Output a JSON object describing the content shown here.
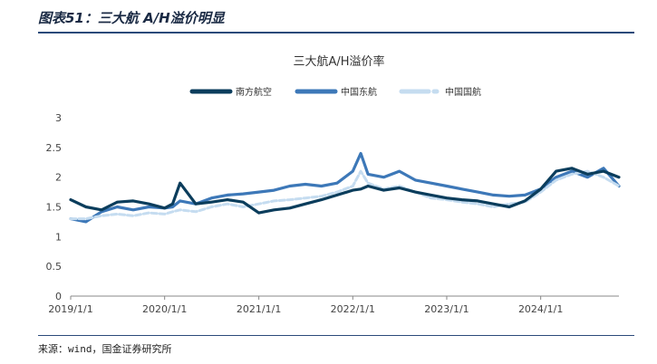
{
  "header": {
    "title": "图表51：三大航 A/H溢价明显"
  },
  "footer": {
    "source": "来源：wind，国金证券研究所"
  },
  "chart_data": {
    "type": "line",
    "title": "三大航A/H溢价率",
    "xlabel": "",
    "ylabel": "",
    "ylim": [
      0,
      3
    ],
    "yticks": [
      "0",
      "0.5",
      "1",
      "1.5",
      "2",
      "2.5",
      "3"
    ],
    "xticks": [
      "2019/1/1",
      "2020/1/1",
      "2021/1/1",
      "2022/1/1",
      "2023/1/1",
      "2024/1/1"
    ],
    "xlim": [
      "2019-01-01",
      "2024-10-31"
    ],
    "grid": false,
    "legend_position": "top-center",
    "x": [
      "2019-01-01",
      "2019-03-01",
      "2019-05-01",
      "2019-07-01",
      "2019-09-01",
      "2019-11-01",
      "2020-01-01",
      "2020-02-01",
      "2020-03-01",
      "2020-05-01",
      "2020-07-01",
      "2020-09-01",
      "2020-11-01",
      "2021-01-01",
      "2021-03-01",
      "2021-05-01",
      "2021-07-01",
      "2021-09-01",
      "2021-11-01",
      "2022-01-01",
      "2022-02-01",
      "2022-03-01",
      "2022-05-01",
      "2022-07-01",
      "2022-09-01",
      "2022-11-01",
      "2023-01-01",
      "2023-03-01",
      "2023-05-01",
      "2023-07-01",
      "2023-09-01",
      "2023-11-01",
      "2024-01-01",
      "2024-03-01",
      "2024-05-01",
      "2024-07-01",
      "2024-09-01",
      "2024-10-31"
    ],
    "series": [
      {
        "name": "南方航空",
        "color": "#0b3d5c",
        "style": "solid",
        "width": 3.2,
        "values": [
          1.62,
          1.5,
          1.45,
          1.58,
          1.6,
          1.55,
          1.48,
          1.55,
          1.9,
          1.55,
          1.58,
          1.62,
          1.58,
          1.4,
          1.45,
          1.48,
          1.55,
          1.62,
          1.7,
          1.78,
          1.8,
          1.85,
          1.78,
          1.82,
          1.75,
          1.7,
          1.65,
          1.62,
          1.6,
          1.55,
          1.5,
          1.6,
          1.8,
          2.1,
          2.15,
          2.05,
          2.1,
          2.0
        ]
      },
      {
        "name": "中国东航",
        "color": "#3d78b8",
        "style": "solid",
        "width": 3.2,
        "values": [
          1.3,
          1.25,
          1.42,
          1.5,
          1.45,
          1.5,
          1.48,
          1.5,
          1.6,
          1.55,
          1.65,
          1.7,
          1.72,
          1.75,
          1.78,
          1.85,
          1.88,
          1.85,
          1.9,
          2.1,
          2.4,
          2.05,
          2.0,
          2.1,
          1.95,
          1.9,
          1.85,
          1.8,
          1.75,
          1.7,
          1.68,
          1.7,
          1.8,
          2.0,
          2.1,
          2.0,
          2.15,
          1.85
        ]
      },
      {
        "name": "中国国航",
        "color": "#c5dcf0",
        "style": "dashed",
        "width": 3.0,
        "values": [
          1.3,
          1.3,
          1.35,
          1.38,
          1.35,
          1.4,
          1.38,
          1.42,
          1.45,
          1.42,
          1.5,
          1.55,
          1.5,
          1.55,
          1.6,
          1.62,
          1.65,
          1.68,
          1.75,
          1.85,
          2.1,
          1.9,
          1.8,
          1.85,
          1.75,
          1.65,
          1.62,
          1.58,
          1.55,
          1.5,
          1.55,
          1.58,
          1.75,
          1.95,
          2.05,
          2.1,
          2.0,
          1.85
        ]
      }
    ]
  }
}
